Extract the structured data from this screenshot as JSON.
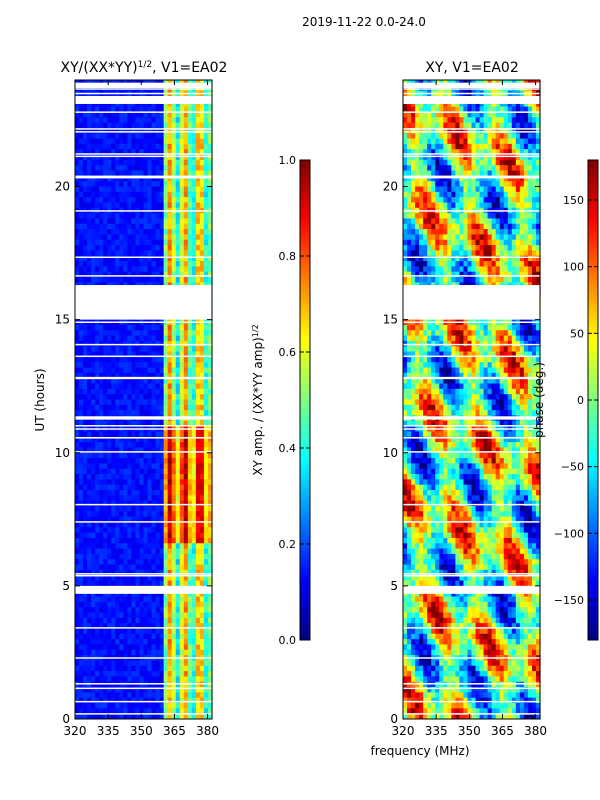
{
  "figure": {
    "suptitle": "2019-11-22 0.0-24.0",
    "xlabel_shared": "frequency (MHz)"
  },
  "colors": {
    "background": "#ffffff",
    "jet": [
      "#00007f",
      "#0000ff",
      "#007fff",
      "#00ffff",
      "#7fff7f",
      "#ffff00",
      "#ff7f00",
      "#ff0000",
      "#7f0000"
    ]
  },
  "chart_data": [
    {
      "type": "heatmap",
      "name": "amplitude",
      "title_main": "XY/(XX*YY)",
      "title_sup": "1/2",
      "title_tail": ", V1=EA02",
      "xlabel": "",
      "ylabel": "UT (hours)",
      "xlim": [
        320,
        382
      ],
      "ylim": [
        0,
        24
      ],
      "xticks": [
        "320",
        "335",
        "350",
        "365",
        "380"
      ],
      "xtick_values": [
        320,
        335,
        350,
        365,
        380
      ],
      "yticks": [
        "0",
        "5",
        "10",
        "15",
        "20"
      ],
      "ytick_values": [
        0,
        5,
        10,
        15,
        20
      ],
      "flagged_hours": [
        [
          15.0,
          16.3
        ],
        [
          4.7,
          5.0
        ],
        [
          23.1,
          23.4
        ],
        [
          23.7,
          23.9
        ]
      ],
      "colorbar": {
        "label_main": "XY amp. / (XX*YY amp)",
        "label_sup": "1/2",
        "range": [
          0.0,
          1.0
        ],
        "ticks": [
          "0.0",
          "0.2",
          "0.4",
          "0.6",
          "0.8",
          "1.0"
        ],
        "tick_values": [
          0.0,
          0.2,
          0.4,
          0.6,
          0.8,
          1.0
        ]
      }
    },
    {
      "type": "heatmap",
      "name": "phase",
      "title": "XY, V1=EA02",
      "xlabel": "frequency (MHz)",
      "ylabel": "",
      "xlim": [
        320,
        382
      ],
      "ylim": [
        0,
        24
      ],
      "xticks": [
        "320",
        "335",
        "350",
        "365",
        "380"
      ],
      "xtick_values": [
        320,
        335,
        350,
        365,
        380
      ],
      "yticks": [
        "0",
        "5",
        "10",
        "15",
        "20"
      ],
      "ytick_values": [
        0,
        5,
        10,
        15,
        20
      ],
      "flagged_hours": [
        [
          15.0,
          16.3
        ],
        [
          4.7,
          5.0
        ],
        [
          23.1,
          23.4
        ],
        [
          23.7,
          23.9
        ]
      ],
      "colorbar": {
        "label": "phase (deg.)",
        "range": [
          -180,
          180
        ],
        "ticks": [
          "150",
          "100",
          "50",
          "0",
          "−50",
          "−100",
          "−150"
        ],
        "tick_values": [
          150,
          100,
          50,
          0,
          -50,
          -100,
          -150
        ]
      }
    }
  ]
}
